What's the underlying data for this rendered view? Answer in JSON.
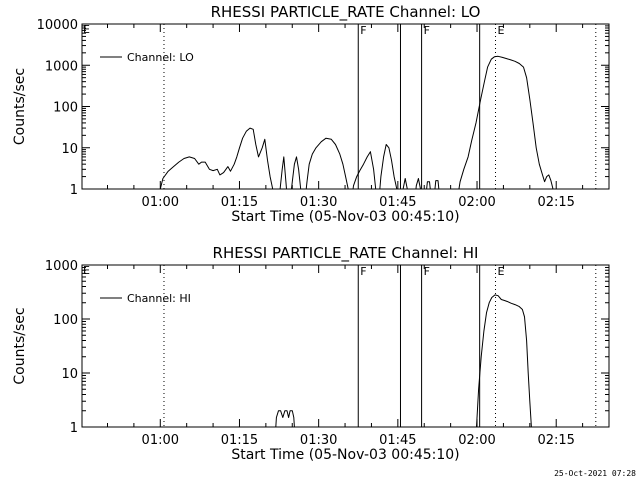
{
  "timestamp": "25-Oct-2021 07:28",
  "colors": {
    "background": "#ffffff",
    "foreground": "#000000"
  },
  "chart_data": [
    {
      "type": "line",
      "title": "RHESSI PARTICLE_RATE Channel: LO",
      "xlabel": "Start Time (05-Nov-03 00:45:10)",
      "ylabel": "Counts/sec",
      "xlim_minutes": [
        45.17,
        145
      ],
      "ylim": [
        1,
        10000
      ],
      "yscale": "log",
      "xtick_labels": [
        "01:00",
        "01:15",
        "01:30",
        "01:45",
        "02:00",
        "02:15"
      ],
      "xtick_minutes": [
        60,
        75,
        90,
        105,
        120,
        135
      ],
      "ytick_labels": [
        "1",
        "10",
        "100",
        "1000",
        "10000"
      ],
      "ytick_values": [
        1,
        10,
        100,
        1000,
        10000
      ],
      "legend": "Channel: LO",
      "solid_markers": [
        {
          "minute": 97.5,
          "label": "F"
        },
        {
          "minute": 105.5,
          "label": ""
        },
        {
          "minute": 109.5,
          "label": "F"
        },
        {
          "minute": 120.5,
          "label": ""
        }
      ],
      "dotted_markers": [
        {
          "minute": 60.7,
          "label": ""
        },
        {
          "minute": 123.5,
          "label": "E"
        },
        {
          "minute": 142.5,
          "label": ""
        }
      ],
      "left_marker_label": "E",
      "series": [
        {
          "name": "Channel: LO",
          "segments": [
            [
              [
                59.7,
                0.5
              ],
              [
                60,
                1
              ],
              [
                60.5,
                1.8
              ],
              [
                61.5,
                2.7
              ],
              [
                62.5,
                3.5
              ],
              [
                63.5,
                4.5
              ],
              [
                64.5,
                5.5
              ],
              [
                65.5,
                6
              ],
              [
                66.5,
                5.5
              ],
              [
                67.3,
                4
              ],
              [
                67.8,
                4.5
              ],
              [
                68.5,
                4.5
              ],
              [
                69.3,
                3
              ],
              [
                70,
                2.8
              ],
              [
                70.8,
                3
              ],
              [
                71.3,
                2.2
              ],
              [
                72,
                2.5
              ],
              [
                72.8,
                3.5
              ],
              [
                73.3,
                2.7
              ],
              [
                74,
                4
              ],
              [
                74.5,
                6
              ],
              [
                75,
                10
              ],
              [
                75.6,
                17
              ],
              [
                76.3,
                25
              ],
              [
                77,
                30
              ],
              [
                77.6,
                28
              ],
              [
                78.1,
                12
              ],
              [
                78.6,
                6
              ],
              [
                79.3,
                10
              ],
              [
                79.8,
                16
              ],
              [
                80.3,
                5
              ],
              [
                80.8,
                2
              ],
              [
                81.3,
                1
              ],
              [
                81.6,
                0.5
              ]
            ],
            [
              [
                82.3,
                0.5
              ],
              [
                82.7,
                1
              ],
              [
                83.1,
                3
              ],
              [
                83.4,
                6
              ],
              [
                83.8,
                1.5
              ],
              [
                84.1,
                0.5
              ]
            ],
            [
              [
                84.6,
                0.5
              ],
              [
                85,
                1.5
              ],
              [
                85.4,
                4
              ],
              [
                85.8,
                6
              ],
              [
                86.2,
                3
              ],
              [
                86.6,
                1
              ],
              [
                87,
                0.5
              ]
            ],
            [
              [
                87.4,
                0.5
              ],
              [
                87.8,
                1.5
              ],
              [
                88.2,
                4
              ],
              [
                88.8,
                7
              ],
              [
                89.5,
                10
              ],
              [
                90.5,
                14
              ],
              [
                91.4,
                17
              ],
              [
                92.4,
                16
              ],
              [
                93.2,
                12
              ],
              [
                94,
                7
              ],
              [
                94.6,
                4
              ],
              [
                95.1,
                2
              ],
              [
                95.6,
                1
              ],
              [
                95.9,
                0.5
              ]
            ],
            [
              [
                96.2,
                0.5
              ],
              [
                96.6,
                1.2
              ],
              [
                97.2,
                2
              ],
              [
                97.8,
                2.8
              ],
              [
                98.5,
                4
              ],
              [
                99.2,
                6
              ],
              [
                99.8,
                8
              ],
              [
                100.4,
                3
              ],
              [
                100.8,
                1
              ],
              [
                101.1,
                0.5
              ]
            ],
            [
              [
                101.4,
                0.5
              ],
              [
                101.8,
                2
              ],
              [
                102.3,
                6
              ],
              [
                102.8,
                12
              ],
              [
                103.3,
                10
              ],
              [
                103.8,
                5
              ],
              [
                104.3,
                2
              ],
              [
                104.8,
                1
              ],
              [
                105.2,
                0.5
              ]
            ],
            [
              [
                105.7,
                0.5
              ],
              [
                106,
                1
              ],
              [
                106.4,
                1.8
              ],
              [
                106.8,
                1
              ],
              [
                107.1,
                0.5
              ]
            ],
            [
              [
                108.2,
                0.5
              ],
              [
                108.5,
                1.2
              ],
              [
                108.9,
                1.8
              ],
              [
                109.3,
                1
              ],
              [
                109.6,
                0.5
              ]
            ],
            [
              [
                110.2,
                0.5
              ],
              [
                110.6,
                1.5
              ],
              [
                111,
                1.5
              ],
              [
                111.4,
                0.5
              ]
            ],
            [
              [
                111.8,
                0.5
              ],
              [
                112.2,
                1.6
              ],
              [
                112.6,
                1.6
              ],
              [
                113,
                0.5
              ]
            ],
            [
              [
                116.2,
                0.5
              ],
              [
                116.8,
                1.5
              ],
              [
                117.5,
                3
              ],
              [
                118.3,
                6
              ],
              [
                119,
                15
              ],
              [
                119.8,
                40
              ],
              [
                120.7,
                150
              ],
              [
                121.4,
                400
              ],
              [
                122,
                900
              ],
              [
                122.7,
                1400
              ],
              [
                123.3,
                1600
              ],
              [
                124,
                1650
              ],
              [
                124.8,
                1550
              ],
              [
                125.6,
                1450
              ],
              [
                126.4,
                1350
              ],
              [
                127.2,
                1250
              ],
              [
                128,
                1100
              ],
              [
                128.8,
                900
              ],
              [
                129.4,
                500
              ],
              [
                130,
                150
              ],
              [
                130.6,
                40
              ],
              [
                131.2,
                10
              ],
              [
                131.8,
                4
              ],
              [
                132.4,
                2.2
              ],
              [
                132.8,
                1.5
              ],
              [
                133.2,
                2
              ],
              [
                133.6,
                2.2
              ],
              [
                134,
                1.6
              ],
              [
                134.4,
                1
              ],
              [
                134.8,
                0.5
              ]
            ]
          ]
        }
      ]
    },
    {
      "type": "line",
      "title": "RHESSI PARTICLE_RATE Channel: HI",
      "xlabel": "Start Time (05-Nov-03 00:45:10)",
      "ylabel": "Counts/sec",
      "xlim_minutes": [
        45.17,
        145
      ],
      "ylim": [
        1,
        1000
      ],
      "yscale": "log",
      "xtick_labels": [
        "01:00",
        "01:15",
        "01:30",
        "01:45",
        "02:00",
        "02:15"
      ],
      "xtick_minutes": [
        60,
        75,
        90,
        105,
        120,
        135
      ],
      "ytick_labels": [
        "1",
        "10",
        "100",
        "1000"
      ],
      "ytick_values": [
        1,
        10,
        100,
        1000
      ],
      "legend": "Channel: HI",
      "solid_markers": [
        {
          "minute": 97.5,
          "label": "F"
        },
        {
          "minute": 105.5,
          "label": ""
        },
        {
          "minute": 109.5,
          "label": "F"
        },
        {
          "minute": 120.5,
          "label": ""
        }
      ],
      "dotted_markers": [
        {
          "minute": 60.7,
          "label": ""
        },
        {
          "minute": 123.5,
          "label": "E"
        },
        {
          "minute": 142.5,
          "label": ""
        }
      ],
      "left_marker_label": "E",
      "series": [
        {
          "name": "Channel: HI",
          "segments": [
            [
              [
                81.7,
                0.5
              ],
              [
                82,
                1.5
              ],
              [
                82.4,
                2
              ],
              [
                82.8,
                2
              ],
              [
                83.2,
                1.5
              ],
              [
                83.6,
                2
              ],
              [
                84,
                2
              ],
              [
                84.3,
                1.5
              ],
              [
                84.6,
                2
              ],
              [
                85,
                2
              ],
              [
                85.3,
                1.5
              ],
              [
                85.6,
                0.5
              ]
            ],
            [
              [
                119.6,
                0.5
              ],
              [
                119.9,
                1
              ],
              [
                120.3,
                5
              ],
              [
                120.8,
                20
              ],
              [
                121.3,
                60
              ],
              [
                121.8,
                130
              ],
              [
                122.3,
                200
              ],
              [
                122.8,
                250
              ],
              [
                123.4,
                280
              ],
              [
                124,
                270
              ],
              [
                124.6,
                230
              ],
              [
                125.2,
                220
              ],
              [
                125.8,
                210
              ],
              [
                126.5,
                195
              ],
              [
                127.2,
                185
              ],
              [
                128,
                170
              ],
              [
                128.6,
                150
              ],
              [
                129,
                110
              ],
              [
                129.4,
                40
              ],
              [
                129.7,
                10
              ],
              [
                130,
                3
              ],
              [
                130.3,
                1
              ],
              [
                130.5,
                0.5
              ]
            ]
          ]
        }
      ]
    }
  ]
}
